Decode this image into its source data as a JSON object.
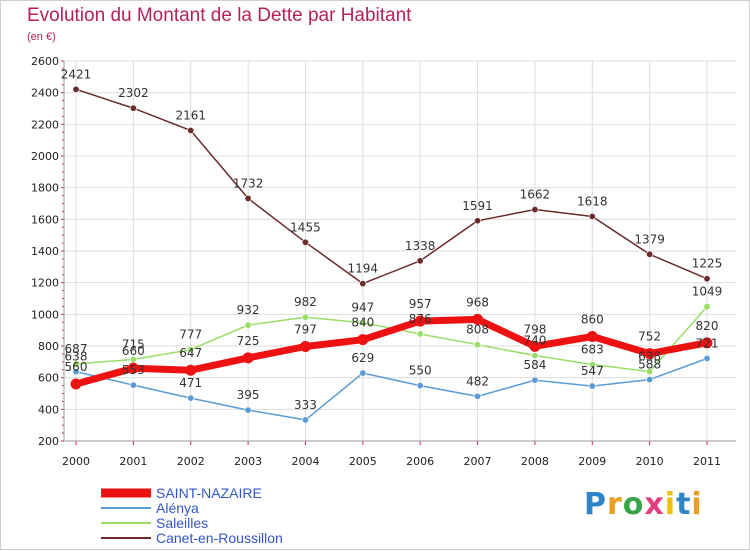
{
  "title": "Evolution du Montant de la Dette par Habitant",
  "subtitle": "(en €)",
  "logo": "Proxiti",
  "chart_data": {
    "type": "line",
    "title": "Evolution du Montant de la Dette par Habitant",
    "subtitle": "(en €)",
    "x": [
      "2000",
      "2001",
      "2002",
      "2003",
      "2004",
      "2005",
      "2006",
      "2007",
      "2008",
      "2009",
      "2010",
      "2011"
    ],
    "ylim": [
      200,
      2600
    ],
    "yticks": [
      200,
      400,
      600,
      800,
      1000,
      1200,
      1400,
      1600,
      1800,
      2000,
      2200,
      2400,
      2600
    ],
    "grid": true,
    "legend_position": "bottom-left",
    "series": [
      {
        "name": "SAINT-NAZAIRE",
        "color": "#ee1111",
        "values": [
          560,
          660,
          647,
          725,
          797,
          840,
          957,
          968,
          798,
          860,
          752,
          820
        ]
      },
      {
        "name": "Alénya",
        "color": "#5b9bd5",
        "values": [
          638,
          553,
          471,
          395,
          333,
          629,
          550,
          482,
          584,
          547,
          588,
          721
        ]
      },
      {
        "name": "Saleilles",
        "color": "#99dd66",
        "values": [
          687,
          715,
          777,
          932,
          982,
          947,
          876,
          808,
          740,
          683,
          638,
          1049
        ]
      },
      {
        "name": "Canet-en-Roussillon",
        "color": "#6b2b2b",
        "values": [
          2421,
          2302,
          2161,
          1732,
          1455,
          1194,
          1338,
          1591,
          1662,
          1618,
          1379,
          1225
        ]
      }
    ]
  }
}
